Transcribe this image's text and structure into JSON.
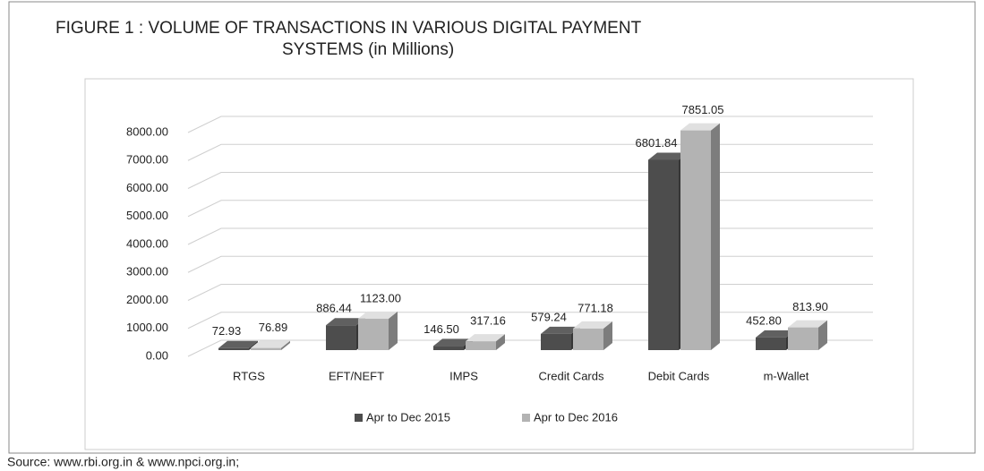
{
  "chart_data": {
    "type": "bar3d",
    "title_lines": [
      "FIGURE 1 : VOLUME OF TRANSACTIONS IN VARIOUS DIGITAL PAYMENT",
      "SYSTEMS (in Millions)"
    ],
    "categories": [
      "RTGS",
      "EFT/NEFT",
      "IMPS",
      "Credit Cards",
      "Debit Cards",
      "m-Wallet"
    ],
    "series": [
      {
        "name": "Apr to Dec 2015",
        "color": "#4d4d4d",
        "values": [
          72.93,
          886.44,
          146.5,
          579.24,
          6801.84,
          452.8
        ],
        "value_labels": [
          "72.93",
          "886.44",
          "146.50",
          "579.24",
          "6801.84",
          "452.80"
        ]
      },
      {
        "name": "Apr to Dec 2016",
        "color": "#b3b3b3",
        "values": [
          76.89,
          1123,
          317.16,
          771.18,
          7851.05,
          813.9
        ],
        "value_labels": [
          "76.89",
          "1123.00",
          "317.16",
          "771.18",
          "7851.05",
          "813.90"
        ]
      }
    ],
    "ylim": [
      0,
      8000
    ],
    "yticks": [
      {
        "value": 0,
        "label": "0.00"
      },
      {
        "value": 1000,
        "label": "1000.00"
      },
      {
        "value": 2000,
        "label": "2000.00"
      },
      {
        "value": 3000,
        "label": "3000.00"
      },
      {
        "value": 4000,
        "label": "4000.00"
      },
      {
        "value": 5000,
        "label": "5000.00"
      },
      {
        "value": 6000,
        "label": "6000.00"
      },
      {
        "value": 7000,
        "label": "7000.00"
      },
      {
        "value": 8000,
        "label": "8000.00"
      }
    ],
    "grid": true,
    "legend": "bottom",
    "source": "Source: www.rbi.org.in & www.npci.org.in;"
  }
}
